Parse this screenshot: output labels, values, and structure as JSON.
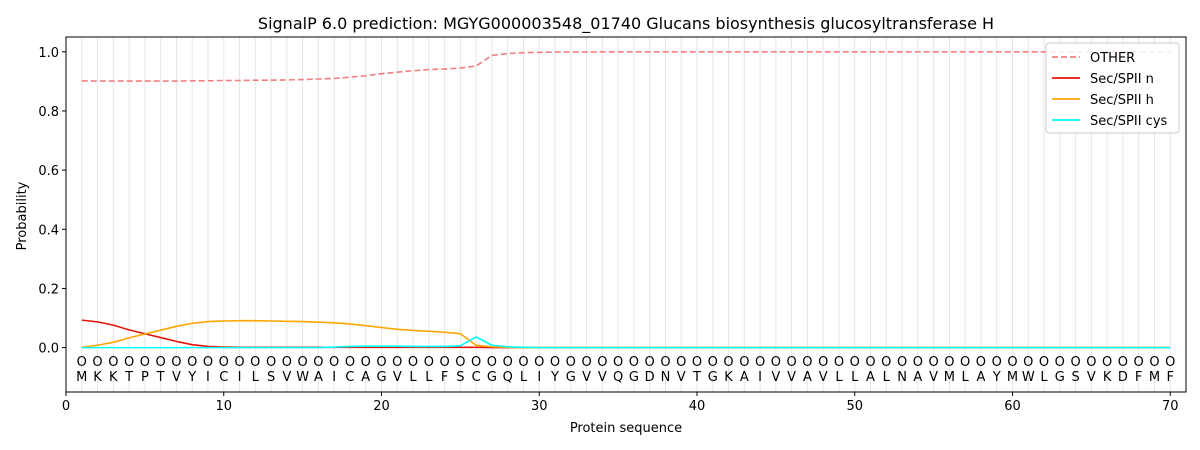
{
  "chart_data": {
    "type": "line",
    "title": "SignalP 6.0 prediction: MGYG000003548_01740 Glucans biosynthesis glucosyltransferase H",
    "xlabel": "Protein sequence",
    "ylabel": "Probability",
    "xlim": [
      0,
      71
    ],
    "ylim": [
      -0.15,
      1.05
    ],
    "xticks": [
      0,
      10,
      20,
      30,
      40,
      50,
      60,
      70
    ],
    "yticks": [
      0.0,
      0.2,
      0.4,
      0.6,
      0.8,
      1.0
    ],
    "grid": "vertical lines at each residue",
    "legend_position": "top-right",
    "sequence": [
      "M",
      "K",
      "K",
      "T",
      "P",
      "T",
      "V",
      "Y",
      "I",
      "C",
      "I",
      "L",
      "S",
      "V",
      "W",
      "A",
      "I",
      "C",
      "A",
      "G",
      "V",
      "L",
      "L",
      "F",
      "S",
      "C",
      "G",
      "Q",
      "L",
      "I",
      "Y",
      "G",
      "V",
      "V",
      "Q",
      "G",
      "D",
      "N",
      "V",
      "T",
      "G",
      "K",
      "A",
      "I",
      "V",
      "V",
      "A",
      "V",
      "L",
      "L",
      "A",
      "L",
      "N",
      "A",
      "V",
      "M",
      "L",
      "A",
      "Y",
      "M",
      "W",
      "L",
      "G",
      "S",
      "V",
      "K",
      "D",
      "F",
      "M",
      "F"
    ],
    "region_label": "O",
    "region_y": -0.045,
    "series": [
      {
        "name": "OTHER",
        "color": "#f08080",
        "dash": true,
        "values": [
          0.902,
          0.901,
          0.901,
          0.901,
          0.901,
          0.901,
          0.901,
          0.902,
          0.902,
          0.903,
          0.903,
          0.904,
          0.904,
          0.905,
          0.906,
          0.908,
          0.91,
          0.914,
          0.919,
          0.926,
          0.931,
          0.936,
          0.94,
          0.942,
          0.945,
          0.952,
          0.988,
          0.994,
          0.997,
          0.998,
          0.999,
          0.999,
          0.999,
          1.0,
          1.0,
          1.0,
          1.0,
          1.0,
          1.0,
          1.0,
          1.0,
          1.0,
          1.0,
          1.0,
          1.0,
          1.0,
          1.0,
          1.0,
          1.0,
          1.0,
          1.0,
          1.0,
          1.0,
          1.0,
          1.0,
          1.0,
          1.0,
          1.0,
          1.0,
          1.0,
          1.0,
          1.0,
          1.0,
          1.0,
          1.0,
          1.0,
          1.0,
          1.0,
          1.0,
          1.0
        ]
      },
      {
        "name": "Sec/SPII n",
        "color": "#e8140c",
        "dash": false,
        "values": [
          0.093,
          0.087,
          0.076,
          0.06,
          0.047,
          0.034,
          0.021,
          0.01,
          0.004,
          0.002,
          0.001,
          0.001,
          0.001,
          0.001,
          0.001,
          0.001,
          0.001,
          0.001,
          0.001,
          0.001,
          0.001,
          0.001,
          0.001,
          0.001,
          0.001,
          0.001,
          0.0,
          0.0,
          0.0,
          0.0,
          0.0,
          0.0,
          0.0,
          0.0,
          0.0,
          0.0,
          0.0,
          0.0,
          0.0,
          0.0,
          0.0,
          0.0,
          0.0,
          0.0,
          0.0,
          0.0,
          0.0,
          0.0,
          0.0,
          0.0,
          0.0,
          0.0,
          0.0,
          0.0,
          0.0,
          0.0,
          0.0,
          0.0,
          0.0,
          0.0,
          0.0,
          0.0,
          0.0,
          0.0,
          0.0,
          0.0,
          0.0,
          0.0,
          0.0,
          0.0
        ]
      },
      {
        "name": "Sec/SPII h",
        "color": "#ffa500",
        "dash": false,
        "values": [
          0.001,
          0.008,
          0.018,
          0.033,
          0.046,
          0.059,
          0.072,
          0.082,
          0.088,
          0.09,
          0.091,
          0.091,
          0.09,
          0.089,
          0.088,
          0.086,
          0.084,
          0.08,
          0.074,
          0.068,
          0.062,
          0.058,
          0.055,
          0.052,
          0.047,
          0.008,
          0.003,
          0.001,
          0.0,
          0.0,
          0.0,
          0.0,
          0.0,
          0.0,
          0.0,
          0.0,
          0.0,
          0.0,
          0.0,
          0.0,
          0.0,
          0.0,
          0.0,
          0.0,
          0.0,
          0.0,
          0.0,
          0.0,
          0.0,
          0.0,
          0.0,
          0.0,
          0.0,
          0.0,
          0.0,
          0.0,
          0.0,
          0.0,
          0.0,
          0.0,
          0.0,
          0.0,
          0.0,
          0.0,
          0.0,
          0.0,
          0.0,
          0.0,
          0.0,
          0.0
        ]
      },
      {
        "name": "Sec/SPII cys",
        "color": "#00ffff",
        "dash": false,
        "values": [
          0.0,
          0.0,
          0.0,
          0.0,
          0.0,
          0.0,
          0.0,
          0.0,
          0.0,
          0.0,
          0.0,
          0.0,
          0.0,
          0.0,
          0.0,
          0.0,
          0.002,
          0.004,
          0.005,
          0.005,
          0.005,
          0.004,
          0.004,
          0.004,
          0.006,
          0.036,
          0.008,
          0.003,
          0.001,
          0.0,
          0.0,
          0.0,
          0.0,
          0.0,
          0.0,
          0.0,
          0.0,
          0.0,
          0.0,
          0.0,
          0.0,
          0.0,
          0.0,
          0.0,
          0.0,
          0.0,
          0.0,
          0.0,
          0.0,
          0.0,
          0.0,
          0.0,
          0.0,
          0.0,
          0.0,
          0.0,
          0.0,
          0.0,
          0.0,
          0.0,
          0.0,
          0.0,
          0.0,
          0.0,
          0.0,
          0.0,
          0.0,
          0.0,
          0.0,
          0.0
        ]
      }
    ]
  }
}
